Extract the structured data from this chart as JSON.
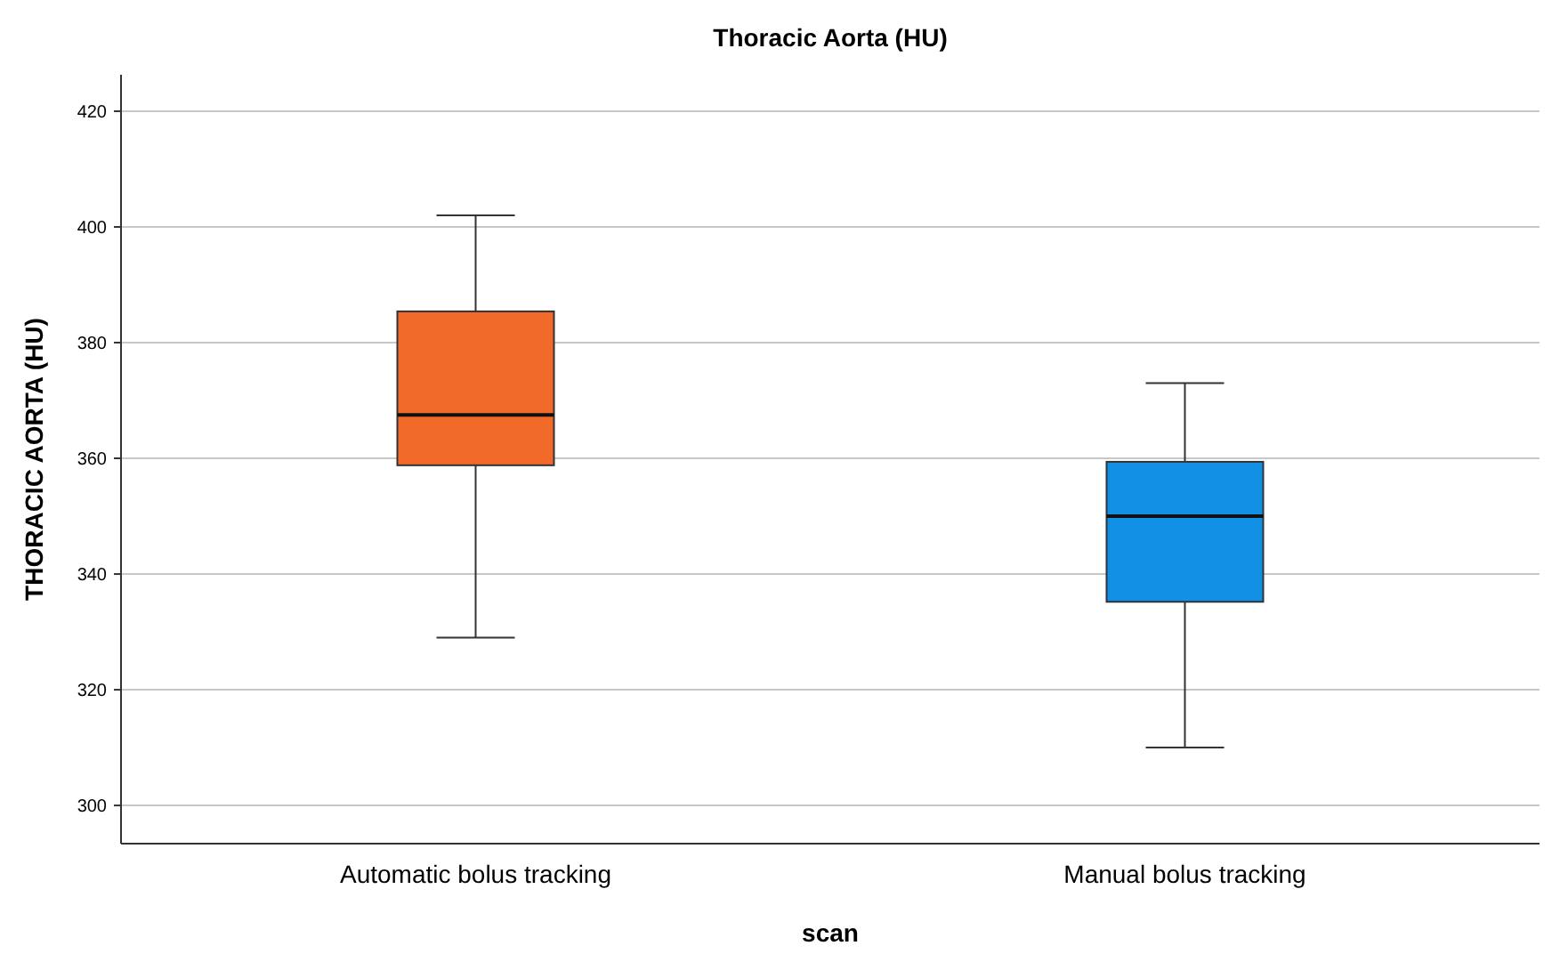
{
  "chart_data": {
    "type": "box",
    "title": "Thoracic Aorta (HU)",
    "xlabel": "scan",
    "ylabel": "THORACIC AORTA (HU)",
    "categories": [
      "Automatic bolus tracking",
      "Manual bolus tracking"
    ],
    "boxes": [
      {
        "low": 329,
        "q1": 358.8,
        "median": 367.5,
        "q3": 385.4,
        "high": 402
      },
      {
        "low": 310,
        "q1": 335.2,
        "median": 350,
        "q3": 359.4,
        "high": 373
      }
    ],
    "colors": [
      "#f26a2a",
      "#1290e6"
    ],
    "ylim": [
      293.4,
      426.3
    ],
    "yticks": [
      300,
      320,
      340,
      360,
      380,
      400,
      420
    ],
    "grid": "y"
  }
}
